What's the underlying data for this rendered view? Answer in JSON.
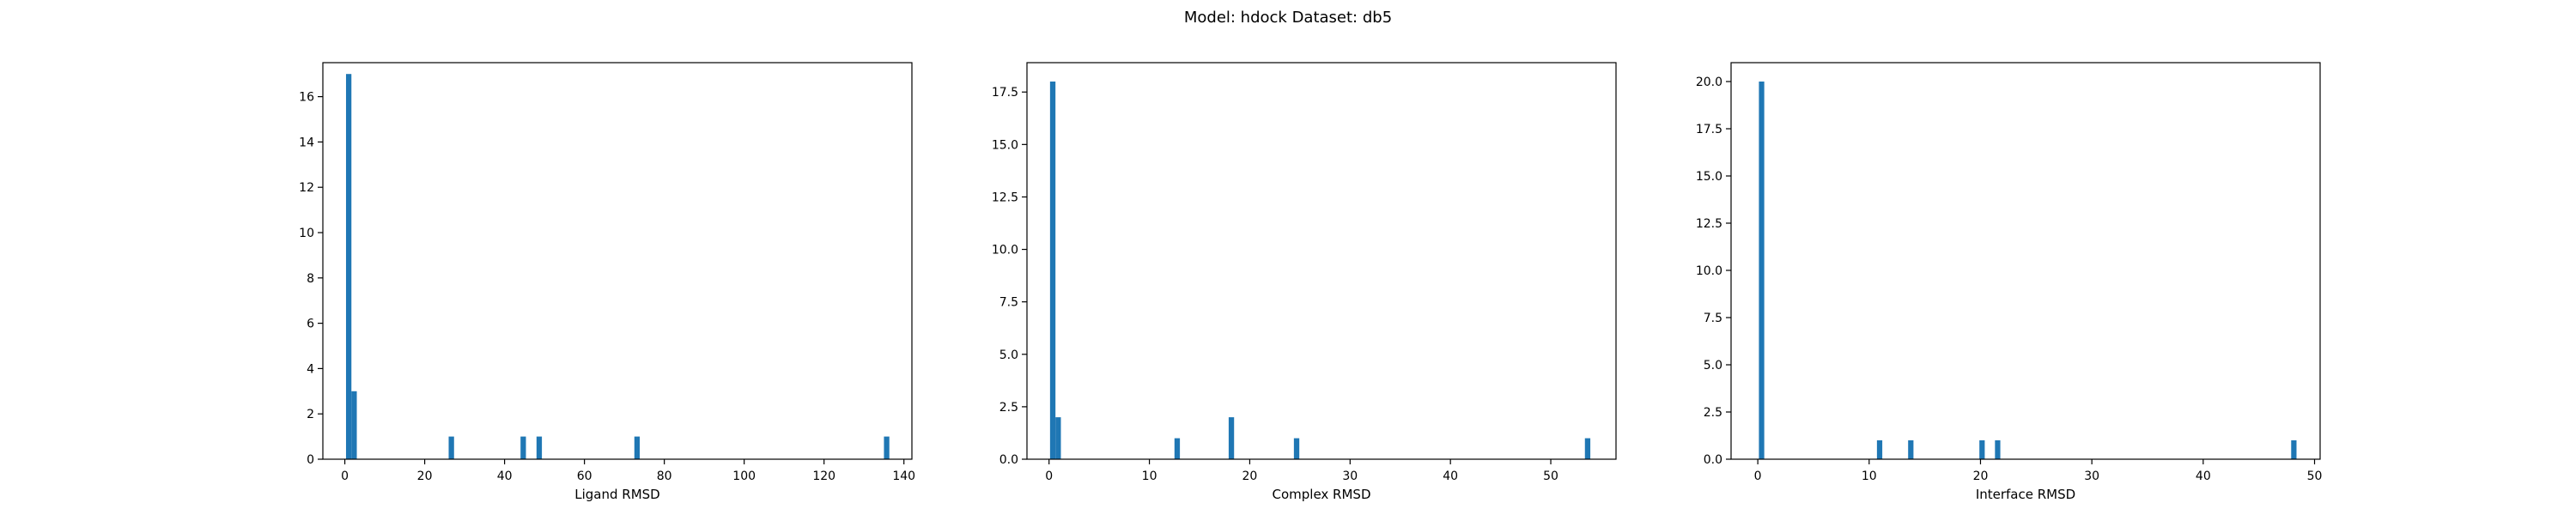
{
  "figure": {
    "suptitle": "Model: hdock Dataset: db5",
    "bar_color": "#1f77b4"
  },
  "chart_data": [
    {
      "type": "bar",
      "subtype": "histogram",
      "xlabel": "Ligand RMSD",
      "ylabel": "",
      "xlim": [
        -5.5,
        142
      ],
      "ylim": [
        0,
        17.5
      ],
      "xticks": [
        0,
        20,
        40,
        60,
        80,
        100,
        120,
        140
      ],
      "yticks": [
        0,
        2,
        4,
        6,
        8,
        10,
        12,
        14,
        16
      ],
      "bin_width": 1.35,
      "bins": [
        {
          "x": 0.3,
          "count": 17
        },
        {
          "x": 1.65,
          "count": 3
        },
        {
          "x": 26.0,
          "count": 1
        },
        {
          "x": 44.0,
          "count": 1
        },
        {
          "x": 48.0,
          "count": 1
        },
        {
          "x": 72.5,
          "count": 1
        },
        {
          "x": 135.0,
          "count": 1
        }
      ],
      "grid": false
    },
    {
      "type": "bar",
      "subtype": "histogram",
      "xlabel": "Complex RMSD",
      "ylabel": "",
      "xlim": [
        -2.2,
        56.5
      ],
      "ylim": [
        0,
        18.9
      ],
      "xticks": [
        0,
        10,
        20,
        30,
        40,
        50
      ],
      "yticks": [
        0.0,
        2.5,
        5.0,
        7.5,
        10.0,
        12.5,
        15.0,
        17.5
      ],
      "yticklabels": [
        "0.0",
        "2.5",
        "5.0",
        "7.5",
        "10.0",
        "12.5",
        "15.0",
        "17.5"
      ],
      "bin_width": 0.54,
      "bins": [
        {
          "x": 0.1,
          "count": 18
        },
        {
          "x": 0.64,
          "count": 2
        },
        {
          "x": 12.5,
          "count": 1
        },
        {
          "x": 17.9,
          "count": 2
        },
        {
          "x": 24.4,
          "count": 1
        },
        {
          "x": 53.4,
          "count": 1
        }
      ],
      "grid": false
    },
    {
      "type": "bar",
      "subtype": "histogram",
      "xlabel": "Interface RMSD",
      "ylabel": "",
      "xlim": [
        -2.4,
        50.5
      ],
      "ylim": [
        0,
        21
      ],
      "xticks": [
        0,
        10,
        20,
        30,
        40,
        50
      ],
      "yticks": [
        0.0,
        2.5,
        5.0,
        7.5,
        10.0,
        12.5,
        15.0,
        17.5,
        20.0
      ],
      "yticklabels": [
        "0.0",
        "2.5",
        "5.0",
        "7.5",
        "10.0",
        "12.5",
        "15.0",
        "17.5",
        "20.0"
      ],
      "bin_width": 0.48,
      "bins": [
        {
          "x": 0.1,
          "count": 20
        },
        {
          "x": 10.7,
          "count": 1
        },
        {
          "x": 13.5,
          "count": 1
        },
        {
          "x": 19.9,
          "count": 1
        },
        {
          "x": 21.3,
          "count": 1
        },
        {
          "x": 47.9,
          "count": 1
        }
      ],
      "grid": false
    }
  ]
}
